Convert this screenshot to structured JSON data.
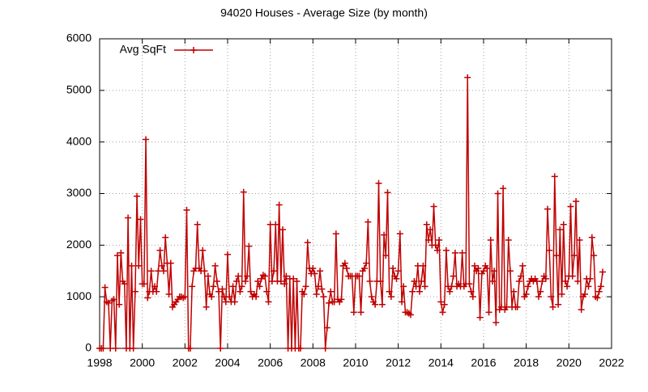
{
  "chart_data": {
    "type": "line",
    "title": "94020 Houses - Average Size (by month)",
    "x": [
      1998,
      1998.083,
      1998.167,
      1998.25,
      1998.333,
      1998.417,
      1998.5,
      1998.583,
      1998.667,
      1998.75,
      1998.833,
      1998.917,
      1999,
      1999.083,
      1999.167,
      1999.25,
      1999.333,
      1999.417,
      1999.5,
      1999.583,
      1999.667,
      1999.75,
      1999.833,
      1999.917,
      2000,
      2000.083,
      2000.167,
      2000.25,
      2000.333,
      2000.417,
      2000.5,
      2000.583,
      2000.667,
      2000.75,
      2000.833,
      2000.917,
      2001,
      2001.083,
      2001.167,
      2001.25,
      2001.333,
      2001.417,
      2001.5,
      2001.583,
      2001.667,
      2001.75,
      2001.833,
      2001.917,
      2002,
      2002.083,
      2002.167,
      2002.25,
      2002.333,
      2002.417,
      2002.5,
      2002.583,
      2002.667,
      2002.75,
      2002.833,
      2002.917,
      2003,
      2003.083,
      2003.167,
      2003.25,
      2003.333,
      2003.417,
      2003.5,
      2003.583,
      2003.667,
      2003.75,
      2003.833,
      2003.917,
      2004,
      2004.083,
      2004.167,
      2004.25,
      2004.333,
      2004.417,
      2004.5,
      2004.583,
      2004.667,
      2004.75,
      2004.833,
      2004.917,
      2005,
      2005.083,
      2005.167,
      2005.25,
      2005.333,
      2005.417,
      2005.5,
      2005.583,
      2005.667,
      2005.75,
      2005.833,
      2005.917,
      2006,
      2006.083,
      2006.167,
      2006.25,
      2006.333,
      2006.417,
      2006.5,
      2006.583,
      2006.667,
      2006.75,
      2006.833,
      2006.917,
      2007,
      2007.083,
      2007.167,
      2007.25,
      2007.333,
      2007.417,
      2007.5,
      2007.583,
      2007.667,
      2007.75,
      2007.833,
      2007.917,
      2008,
      2008.083,
      2008.167,
      2008.25,
      2008.333,
      2008.417,
      2008.5,
      2008.583,
      2008.667,
      2008.75,
      2008.833,
      2008.917,
      2009,
      2009.083,
      2009.167,
      2009.25,
      2009.333,
      2009.417,
      2009.5,
      2009.583,
      2009.667,
      2009.75,
      2009.833,
      2009.917,
      2010,
      2010.083,
      2010.167,
      2010.25,
      2010.333,
      2010.417,
      2010.5,
      2010.583,
      2010.667,
      2010.75,
      2010.833,
      2010.917,
      2011,
      2011.083,
      2011.167,
      2011.25,
      2011.333,
      2011.417,
      2011.5,
      2011.583,
      2011.667,
      2011.75,
      2011.833,
      2011.917,
      2012,
      2012.083,
      2012.167,
      2012.25,
      2012.333,
      2012.417,
      2012.5,
      2012.583,
      2012.667,
      2012.75,
      2012.833,
      2012.917,
      2013,
      2013.083,
      2013.167,
      2013.25,
      2013.333,
      2013.417,
      2013.5,
      2013.583,
      2013.667,
      2013.75,
      2013.833,
      2013.917,
      2014,
      2014.083,
      2014.167,
      2014.25,
      2014.333,
      2014.417,
      2014.5,
      2014.583,
      2014.667,
      2014.75,
      2014.833,
      2014.917,
      2015,
      2015.083,
      2015.167,
      2015.25,
      2015.333,
      2015.417,
      2015.5,
      2015.583,
      2015.667,
      2015.75,
      2015.833,
      2015.917,
      2016,
      2016.083,
      2016.167,
      2016.25,
      2016.333,
      2016.417,
      2016.5,
      2016.583,
      2016.667,
      2016.75,
      2016.833,
      2016.917,
      2017,
      2017.083,
      2017.167,
      2017.25,
      2017.333,
      2017.417,
      2017.5,
      2017.583,
      2017.667,
      2017.75,
      2017.833,
      2017.917,
      2018,
      2018.083,
      2018.167,
      2018.25,
      2018.333,
      2018.417,
      2018.5,
      2018.583,
      2018.667,
      2018.75,
      2018.833,
      2018.917,
      2019,
      2019.083,
      2019.167,
      2019.25,
      2019.333,
      2019.417,
      2019.5,
      2019.583,
      2019.667,
      2019.75,
      2019.833,
      2019.917,
      2020,
      2020.083,
      2020.167,
      2020.25,
      2020.333,
      2020.417,
      2020.5,
      2020.583,
      2020.667,
      2020.75,
      2020.833,
      2020.917,
      2021,
      2021.083,
      2021.167,
      2021.25,
      2021.333,
      2021.417,
      2021.5,
      2021.583
    ],
    "series": [
      {
        "name": "Avg SqFt",
        "color": "#c00000",
        "values": [
          0,
          0,
          0,
          1180,
          900,
          880,
          0,
          920,
          950,
          0,
          1800,
          850,
          1850,
          1300,
          1250,
          0,
          2530,
          0,
          1600,
          0,
          1100,
          2950,
          1600,
          2500,
          1250,
          1250,
          4050,
          980,
          1100,
          1500,
          1100,
          1200,
          1100,
          1500,
          1900,
          1600,
          1500,
          2150,
          1650,
          1050,
          1650,
          800,
          850,
          900,
          950,
          1000,
          1000,
          980,
          1000,
          2680,
          0,
          0,
          1200,
          1500,
          1550,
          2400,
          1550,
          1500,
          1900,
          1500,
          800,
          1400,
          1050,
          1000,
          1200,
          1600,
          1300,
          1100,
          0,
          1150,
          1000,
          900,
          1820,
          1000,
          900,
          1200,
          900,
          1300,
          1400,
          1100,
          1200,
          3030,
          1300,
          1400,
          1980,
          1100,
          1000,
          1050,
          1000,
          1300,
          1200,
          1350,
          1420,
          1400,
          1100,
          900,
          2400,
          1300,
          1500,
          2400,
          1300,
          2780,
          1300,
          2300,
          1250,
          1400,
          0,
          1350,
          0,
          1350,
          0,
          1300,
          0,
          0,
          1100,
          1050,
          1200,
          2050,
          1550,
          1450,
          1550,
          1450,
          1050,
          1200,
          1500,
          1150,
          1000,
          0,
          400,
          880,
          1100,
          900,
          900,
          2220,
          950,
          900,
          950,
          1600,
          1650,
          1550,
          1400,
          1400,
          1400,
          700,
          1400,
          1400,
          1400,
          700,
          1500,
          1550,
          1650,
          2450,
          1300,
          1000,
          900,
          850,
          1300,
          3200,
          1300,
          850,
          2200,
          1800,
          3020,
          1100,
          1000,
          1550,
          1400,
          1350,
          1500,
          2220,
          900,
          1200,
          700,
          700,
          680,
          650,
          1100,
          1300,
          1200,
          1600,
          1100,
          1300,
          1600,
          1200,
          2400,
          2100,
          2300,
          2000,
          2750,
          2000,
          1900,
          2100,
          900,
          700,
          850,
          1900,
          1200,
          1100,
          1200,
          1400,
          1850,
          1200,
          1250,
          1200,
          1850,
          1200,
          1250,
          5250,
          1250,
          1100,
          1000,
          1600,
          1500,
          1550,
          600,
          1450,
          1500,
          1600,
          1550,
          700,
          2100,
          1300,
          1500,
          500,
          3000,
          750,
          800,
          3100,
          750,
          800,
          2100,
          1500,
          800,
          1100,
          800,
          800,
          1300,
          1400,
          1600,
          1000,
          1050,
          1200,
          1300,
          1350,
          1300,
          1350,
          1300,
          1000,
          1100,
          1300,
          1400,
          1350,
          2700,
          1900,
          1000,
          800,
          3330,
          1800,
          850,
          2300,
          1050,
          2400,
          1300,
          1200,
          1400,
          2750,
          1400,
          1800,
          2850,
          1300,
          2100,
          750,
          1000,
          1050,
          1350,
          1200,
          1350,
          2150,
          1800,
          1000,
          980,
          1100,
          1200,
          1480
        ]
      }
    ],
    "xlim": [
      1998,
      2022
    ],
    "xticks": [
      1998,
      2000,
      2002,
      2004,
      2006,
      2008,
      2010,
      2012,
      2014,
      2016,
      2018,
      2020,
      2022
    ],
    "ylim": [
      0,
      6000
    ],
    "yticks": [
      0,
      1000,
      2000,
      3000,
      4000,
      5000,
      6000
    ],
    "grid": true,
    "legend": "top-left"
  }
}
